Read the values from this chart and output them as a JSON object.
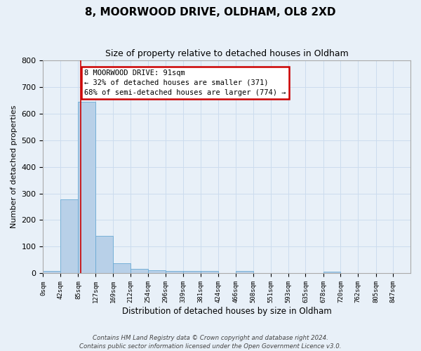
{
  "title_line1": "8, MOORWOOD DRIVE, OLDHAM, OL8 2XD",
  "title_line2": "Size of property relative to detached houses in Oldham",
  "xlabel": "Distribution of detached houses by size in Oldham",
  "ylabel": "Number of detached properties",
  "bar_values": [
    8,
    277,
    644,
    140,
    37,
    17,
    11,
    9,
    9,
    8,
    0,
    8,
    0,
    0,
    0,
    0,
    6,
    0,
    0,
    0
  ],
  "bin_edges": [
    0,
    42,
    85,
    127,
    169,
    212,
    254,
    296,
    339,
    381,
    424,
    466,
    508,
    551,
    593,
    635,
    678,
    720,
    762,
    805,
    847
  ],
  "bin_labels": [
    "0sqm",
    "42sqm",
    "85sqm",
    "127sqm",
    "169sqm",
    "212sqm",
    "254sqm",
    "296sqm",
    "339sqm",
    "381sqm",
    "424sqm",
    "466sqm",
    "508sqm",
    "551sqm",
    "593sqm",
    "635sqm",
    "678sqm",
    "720sqm",
    "762sqm",
    "805sqm",
    "847sqm"
  ],
  "bar_color": "#b8d0e8",
  "bar_edge_color": "#6aaad4",
  "grid_color": "#ccdcee",
  "background_color": "#e8f0f8",
  "property_line_x": 91,
  "annotation_text": "8 MOORWOOD DRIVE: 91sqm\n← 32% of detached houses are smaller (371)\n68% of semi-detached houses are larger (774) →",
  "annotation_box_color": "#ffffff",
  "annotation_box_edge": "#cc0000",
  "footer_text": "Contains HM Land Registry data © Crown copyright and database right 2024.\nContains public sector information licensed under the Open Government Licence v3.0.",
  "ylim": [
    0,
    800
  ],
  "yticks": [
    0,
    100,
    200,
    300,
    400,
    500,
    600,
    700,
    800
  ]
}
